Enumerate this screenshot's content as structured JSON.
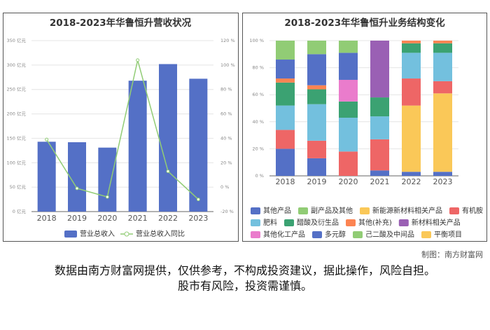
{
  "chart_data": [
    {
      "type": "bar",
      "title": "2018-2023年华鲁恒升营收状况",
      "categories": [
        "2018",
        "2019",
        "2020",
        "2021",
        "2022",
        "2023"
      ],
      "series": [
        {
          "name": "营业总收入",
          "type": "bar",
          "color": "#5470c6",
          "values": [
            143,
            142,
            131,
            268,
            302,
            272
          ]
        },
        {
          "name": "营业总收入同比",
          "type": "line",
          "axis": "y2",
          "color": "#91cc75",
          "values": [
            39,
            -1,
            -8,
            104,
            13,
            -10
          ]
        }
      ],
      "ylim": [
        0,
        350
      ],
      "yticks": [
        {
          "value": 0,
          "label": "0 亿元"
        },
        {
          "value": 50,
          "label": "50 亿元"
        },
        {
          "value": 100,
          "label": "100 亿元"
        },
        {
          "value": 150,
          "label": "150 亿元"
        },
        {
          "value": 200,
          "label": "200 亿元"
        },
        {
          "value": 250,
          "label": "250 亿元"
        },
        {
          "value": 300,
          "label": "300 亿元"
        },
        {
          "value": 350,
          "label": "350 亿元"
        }
      ],
      "y2lim": [
        -20,
        120
      ],
      "y2ticks": [
        {
          "value": -20,
          "label": "-20 %"
        },
        {
          "value": 0,
          "label": "0 %"
        },
        {
          "value": 20,
          "label": "20 %"
        },
        {
          "value": 40,
          "label": "40 %"
        },
        {
          "value": 60,
          "label": "60 %"
        },
        {
          "value": 80,
          "label": "80 %"
        },
        {
          "value": 100,
          "label": "100 %"
        },
        {
          "value": 120,
          "label": "120 %"
        }
      ],
      "grid": true
    },
    {
      "type": "stacked_bar",
      "title": "2018-2023年华鲁恒升业务结构变化",
      "categories": [
        "2018",
        "2019",
        "2020",
        "2021",
        "2022",
        "2023"
      ],
      "series": [
        {
          "name": "其他产品",
          "color": "#5470c6",
          "values": [
            20,
            13,
            0,
            4,
            3,
            3
          ]
        },
        {
          "name": "副产品及其他",
          "color": "#91cc75",
          "values": [
            0,
            0,
            0,
            0,
            0,
            0
          ]
        },
        {
          "name": "新能源新材料相关产品",
          "color": "#fac858",
          "values": [
            0,
            0,
            0,
            0,
            49,
            58
          ]
        },
        {
          "name": "有机胺",
          "color": "#ee6666",
          "values": [
            14,
            13,
            18,
            23,
            20,
            9
          ]
        },
        {
          "name": "肥料",
          "color": "#73c0de",
          "values": [
            18,
            27,
            25,
            17,
            19,
            21
          ]
        },
        {
          "name": "醋酸及衍生品",
          "color": "#3ba272",
          "values": [
            17,
            11,
            12,
            14,
            7,
            7
          ]
        },
        {
          "name": "其他(补充)",
          "color": "#fc8452",
          "values": [
            3,
            3,
            0,
            0,
            2,
            2
          ]
        },
        {
          "name": "新材料相关产品",
          "color": "#9a60b4",
          "values": [
            0,
            0,
            0,
            42,
            0,
            0
          ]
        },
        {
          "name": "其他化工产品",
          "color": "#ea7ccc",
          "values": [
            0,
            0,
            16,
            0,
            0,
            0
          ]
        },
        {
          "name": "多元醇",
          "color": "#5470c6",
          "values": [
            14,
            23,
            20,
            0,
            0,
            0
          ]
        },
        {
          "name": "己二酸及中间品",
          "color": "#91cc75",
          "values": [
            14,
            10,
            9,
            0,
            0,
            0
          ]
        },
        {
          "name": "平衡项目",
          "color": "#fac858",
          "values": [
            0,
            0,
            0,
            0,
            0,
            0
          ]
        }
      ],
      "ylim": [
        0,
        100
      ],
      "yticks": [
        {
          "value": 0,
          "label": "0 %"
        },
        {
          "value": 20,
          "label": "20 %"
        },
        {
          "value": 40,
          "label": "40 %"
        },
        {
          "value": 60,
          "label": "60 %"
        },
        {
          "value": 80,
          "label": "80 %"
        },
        {
          "value": 100,
          "label": "100 %"
        }
      ],
      "grid": true
    }
  ],
  "footer": {
    "source": "制图：南方财富网",
    "disclaimer": [
      "数据由南方财富网提供，仅供参考，不构成投资建议，据此操作，风险自担。",
      "股市有风险，投资需谨慎。"
    ]
  }
}
